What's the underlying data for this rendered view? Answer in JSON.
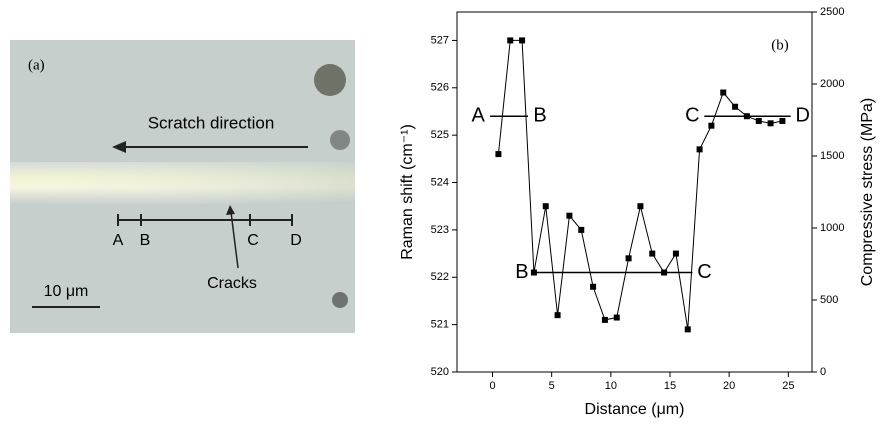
{
  "photo": {
    "panel_label": "(a)",
    "arrow_label": "Scratch direction",
    "points": [
      "A",
      "B",
      "C",
      "D"
    ],
    "cracks_label": "Cracks",
    "scale_label": "10 μm"
  },
  "chart_data": {
    "type": "line",
    "panel_label": "(b)",
    "xlabel": "Distance (μm)",
    "ylabel": "Raman shift (cm⁻¹)",
    "y2label": "Compressive stress (MPa)",
    "x": [
      0.5,
      1.5,
      2.5,
      3.5,
      4.5,
      5.5,
      6.5,
      7.5,
      8.5,
      9.5,
      10.5,
      11.5,
      12.5,
      13.5,
      14.5,
      15.5,
      16.5,
      17.5,
      18.5,
      19.5,
      20.5,
      21.5,
      22.5,
      23.5,
      24.5
    ],
    "values": [
      524.6,
      527.0,
      527.0,
      522.1,
      523.5,
      521.2,
      523.3,
      523.0,
      521.8,
      521.1,
      521.15,
      522.4,
      523.5,
      522.5,
      522.1,
      522.5,
      520.9,
      524.7,
      525.2,
      525.9,
      525.6,
      525.4,
      525.3,
      525.25,
      525.3
    ],
    "color": "#000000",
    "xlim": [
      -3,
      27
    ],
    "xticks": [
      0,
      5,
      10,
      15,
      20,
      25
    ],
    "ylim": [
      520,
      527.6
    ],
    "yticks": [
      520,
      521,
      522,
      523,
      524,
      525,
      526,
      527
    ],
    "y2lim": [
      0,
      2500
    ],
    "y2ticks": [
      0,
      500,
      1000,
      1500,
      2000,
      2500
    ],
    "segments": [
      {
        "from": "A",
        "to": "B",
        "y": 525.4,
        "x": [
          -0.2,
          3.0
        ]
      },
      {
        "from": "B",
        "to": "C",
        "y": 522.1,
        "x": [
          3.5,
          16.9
        ]
      },
      {
        "from": "C",
        "to": "D",
        "y": 525.4,
        "x": [
          17.9,
          25.2
        ]
      }
    ]
  }
}
